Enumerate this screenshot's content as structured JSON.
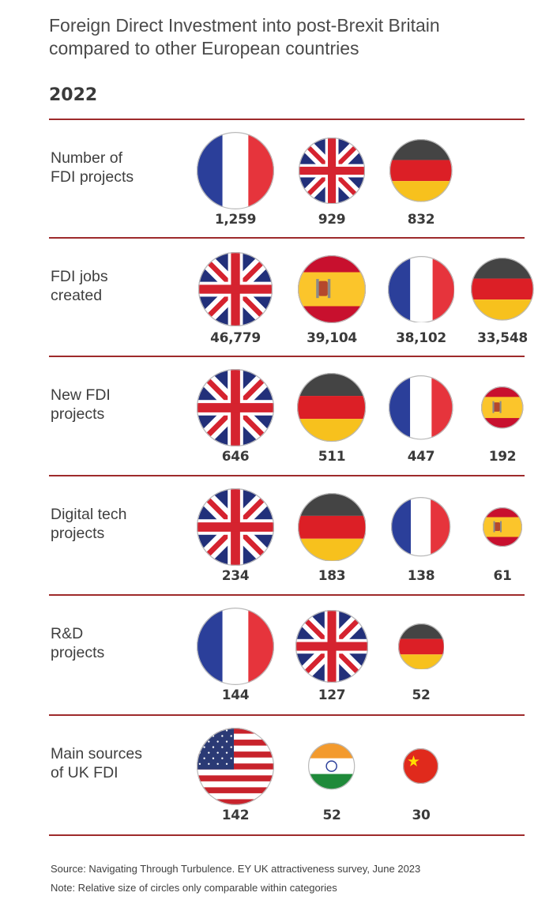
{
  "title": "Foreign Direct Investment into post-Brexit Britain compared to other European countries",
  "year": "2022",
  "colors": {
    "rule": "#9e2a2b",
    "text": "#3a3a3a"
  },
  "chart_data": {
    "type": "table",
    "title": "Foreign Direct Investment into post-Brexit Britain compared to other European countries",
    "year": "2022",
    "categories": [
      {
        "label": "Number of\nFDI projects",
        "entries": [
          {
            "country": "France",
            "flag": "fr",
            "value": 1259,
            "display": "1,259"
          },
          {
            "country": "UK",
            "flag": "uk",
            "value": 929,
            "display": "929"
          },
          {
            "country": "Germany",
            "flag": "de",
            "value": 832,
            "display": "832"
          }
        ]
      },
      {
        "label": "FDI jobs\ncreated",
        "entries": [
          {
            "country": "UK",
            "flag": "uk",
            "value": 46779,
            "display": "46,779"
          },
          {
            "country": "Spain",
            "flag": "es",
            "value": 39104,
            "display": "39,104"
          },
          {
            "country": "France",
            "flag": "fr",
            "value": 38102,
            "display": "38,102"
          },
          {
            "country": "Germany",
            "flag": "de",
            "value": 33548,
            "display": "33,548"
          }
        ]
      },
      {
        "label": "New FDI\nprojects",
        "entries": [
          {
            "country": "UK",
            "flag": "uk",
            "value": 646,
            "display": "646"
          },
          {
            "country": "Germany",
            "flag": "de",
            "value": 511,
            "display": "511"
          },
          {
            "country": "France",
            "flag": "fr",
            "value": 447,
            "display": "447"
          },
          {
            "country": "Spain",
            "flag": "es",
            "value": 192,
            "display": "192"
          }
        ]
      },
      {
        "label": "Digital tech\nprojects",
        "entries": [
          {
            "country": "UK",
            "flag": "uk",
            "value": 234,
            "display": "234"
          },
          {
            "country": "Germany",
            "flag": "de",
            "value": 183,
            "display": "183"
          },
          {
            "country": "France",
            "flag": "fr",
            "value": 138,
            "display": "138"
          },
          {
            "country": "Spain",
            "flag": "es",
            "value": 61,
            "display": "61"
          }
        ]
      },
      {
        "label": "R&D\nprojects",
        "entries": [
          {
            "country": "France",
            "flag": "fr",
            "value": 144,
            "display": "144"
          },
          {
            "country": "UK",
            "flag": "uk",
            "value": 127,
            "display": "127"
          },
          {
            "country": "Germany",
            "flag": "de",
            "value": 52,
            "display": "52"
          }
        ]
      },
      {
        "label": "Main sources\nof UK FDI",
        "entries": [
          {
            "country": "USA",
            "flag": "us",
            "value": 142,
            "display": "142"
          },
          {
            "country": "India",
            "flag": "in",
            "value": 52,
            "display": "52"
          },
          {
            "country": "China",
            "flag": "cn",
            "value": 30,
            "display": "30"
          }
        ]
      }
    ]
  },
  "footer": {
    "source": "Source: Navigating Through Turbulence. EY UK attractiveness survey, June 2023",
    "note": "Note: Relative size of circles only comparable within categories"
  }
}
